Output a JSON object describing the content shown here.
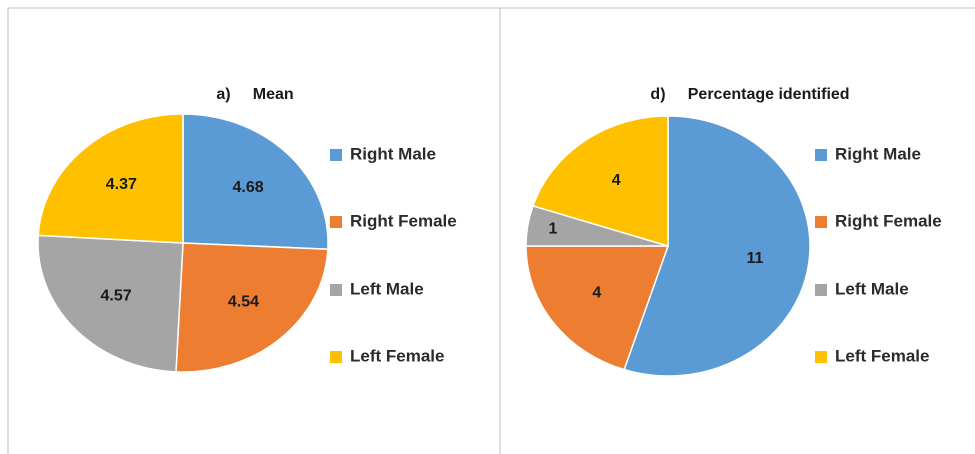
{
  "chart_data": [
    {
      "type": "pie",
      "title": "a)     Mean",
      "categories": [
        "Right Male",
        "Right Female",
        "Left Male",
        "Left Female"
      ],
      "values": [
        4.68,
        4.54,
        4.57,
        4.37
      ],
      "colors": [
        "#5b9bd5",
        "#ed7d31",
        "#a5a5a5",
        "#ffc000"
      ],
      "legend": "right"
    },
    {
      "type": "pie",
      "title": "d)     Percentage identified",
      "categories": [
        "Right Male",
        "Right Female",
        "Left Male",
        "Left Female"
      ],
      "values": [
        11,
        4,
        1,
        4
      ],
      "colors": [
        "#5b9bd5",
        "#ed7d31",
        "#a5a5a5",
        "#ffc000"
      ],
      "legend": "right"
    }
  ]
}
